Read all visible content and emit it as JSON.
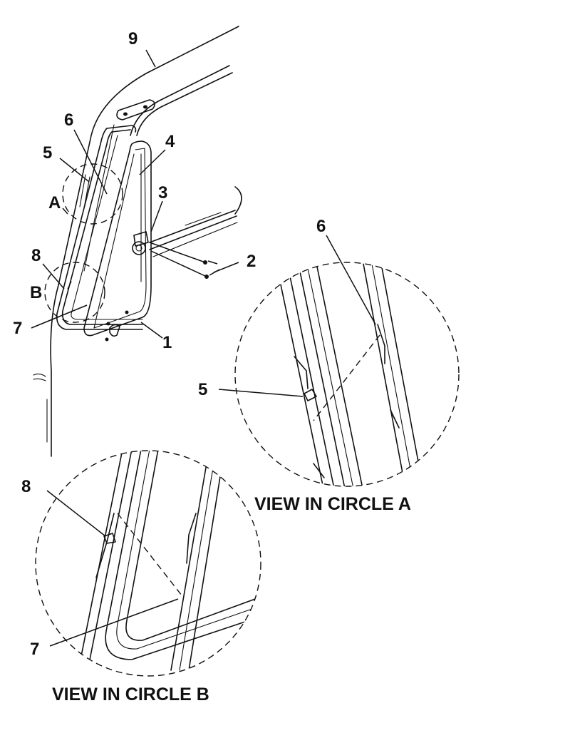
{
  "callouts": {
    "c1": "1",
    "c2": "2",
    "c3": "3",
    "c4": "4",
    "c5": "5",
    "c6": "6",
    "c7": "7",
    "c8": "8",
    "c9": "9",
    "circle_a": "A",
    "circle_b": "B"
  },
  "detail_a": {
    "caption": "VIEW IN CIRCLE  A",
    "c5": "5",
    "c6": "6"
  },
  "detail_b": {
    "caption": "VIEW IN CIRCLE  B",
    "c7": "7",
    "c8": "8"
  }
}
